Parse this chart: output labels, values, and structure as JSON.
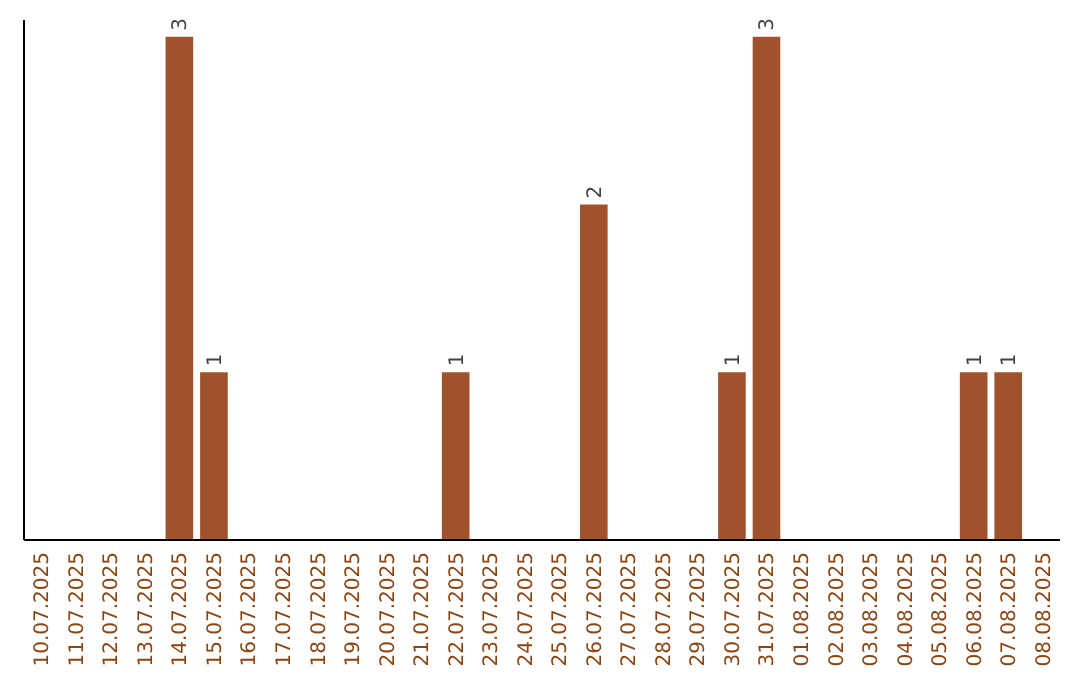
{
  "chart_data": {
    "type": "bar",
    "categories": [
      "10.07.2025",
      "11.07.2025",
      "12.07.2025",
      "13.07.2025",
      "14.07.2025",
      "15.07.2025",
      "16.07.2025",
      "17.07.2025",
      "18.07.2025",
      "19.07.2025",
      "20.07.2025",
      "21.07.2025",
      "22.07.2025",
      "23.07.2025",
      "24.07.2025",
      "25.07.2025",
      "26.07.2025",
      "27.07.2025",
      "28.07.2025",
      "29.07.2025",
      "30.07.2025",
      "31.07.2025",
      "01.08.2025",
      "02.08.2025",
      "03.08.2025",
      "04.08.2025",
      "05.08.2025",
      "06.08.2025",
      "07.08.2025",
      "08.08.2025"
    ],
    "values": [
      0,
      0,
      0,
      0,
      3,
      1,
      0,
      0,
      0,
      0,
      0,
      0,
      1,
      0,
      0,
      0,
      2,
      0,
      0,
      0,
      1,
      3,
      0,
      0,
      0,
      0,
      0,
      1,
      1,
      0
    ],
    "value_labels": [
      null,
      null,
      null,
      null,
      "3",
      "1",
      null,
      null,
      null,
      null,
      null,
      null,
      "1",
      null,
      null,
      null,
      "2",
      null,
      null,
      null,
      "1",
      "3",
      null,
      null,
      null,
      null,
      null,
      "1",
      "1",
      null
    ],
    "color": "#a0522d",
    "ylim": [
      0,
      3.1
    ],
    "tick_labels": "x"
  }
}
